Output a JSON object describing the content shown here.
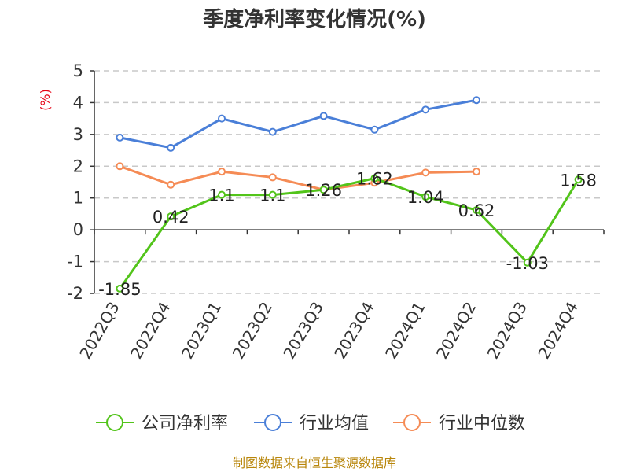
{
  "chart_data": {
    "type": "line",
    "title": "季度净利率变化情况(%)",
    "ylabel": "(%)",
    "ylim": [
      -2,
      5
    ],
    "yticks": [
      5,
      4,
      3,
      2,
      1,
      0,
      -1,
      -2
    ],
    "grid": true,
    "legend_position": "bottom",
    "categories": [
      "2022Q3",
      "2022Q4",
      "2023Q1",
      "2023Q2",
      "2023Q3",
      "2023Q4",
      "2024Q1",
      "2024Q2",
      "2024Q3",
      "2024Q4"
    ],
    "series": [
      {
        "name": "公司净利率",
        "color": "#52c41a",
        "values": [
          -1.85,
          0.42,
          1.1,
          1.1,
          1.26,
          1.62,
          1.04,
          0.62,
          -1.03,
          1.58
        ],
        "labels": [
          "-1.85",
          "0.42",
          "1.1",
          "1.1",
          "1.26",
          "1.62",
          "1.04",
          "0.62",
          "-1.03",
          "1.58"
        ]
      },
      {
        "name": "行业均值",
        "color": "#4a7fd8",
        "values": [
          2.9,
          2.58,
          3.5,
          3.08,
          3.58,
          3.15,
          3.78,
          4.08,
          null,
          null
        ]
      },
      {
        "name": "行业中位数",
        "color": "#f58b55",
        "values": [
          2.0,
          1.42,
          1.83,
          1.65,
          1.26,
          1.48,
          1.8,
          1.83,
          null,
          null
        ]
      }
    ],
    "source": "制图数据来自恒生聚源数据库"
  }
}
